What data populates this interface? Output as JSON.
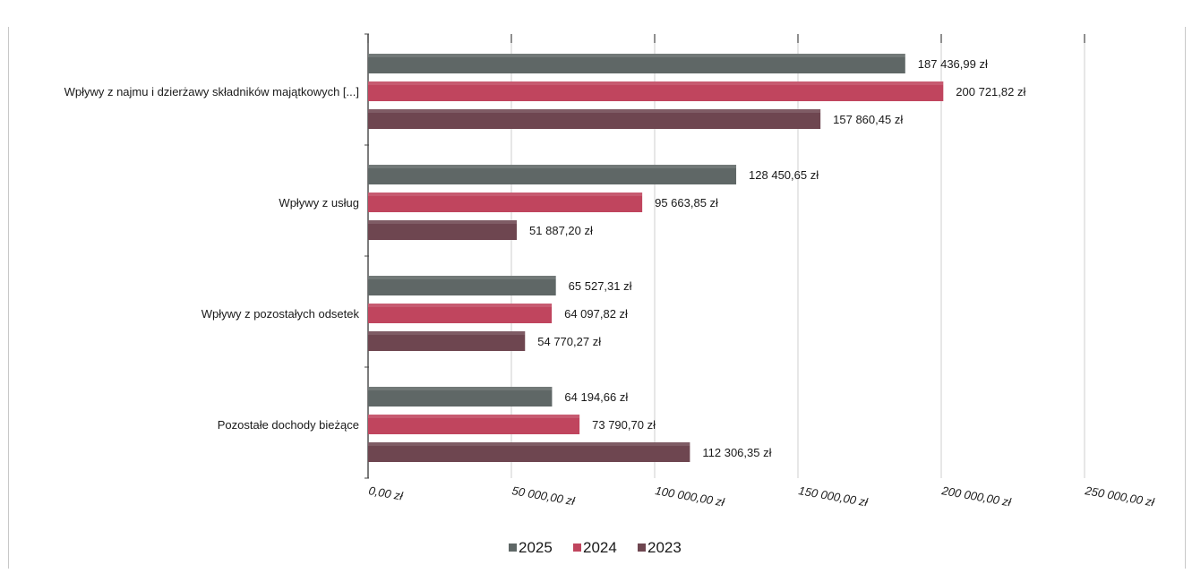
{
  "chart_data": {
    "type": "bar",
    "orientation": "horizontal",
    "categories": [
      "Wpływy z najmu i dzierżawy składników majątkowych [...]",
      "Wpływy z usług",
      "Wpływy z pozostałych odsetek",
      "Pozostałe dochody bieżące"
    ],
    "series": [
      {
        "name": "2025",
        "color": "#5f6766",
        "values": [
          187436.99,
          128450.65,
          65527.31,
          64194.66
        ],
        "labels": [
          "187 436,99 zł",
          "128 450,65 zł",
          "65 527,31 zł",
          "64 194,66 zł"
        ]
      },
      {
        "name": "2024",
        "color": "#c0455e",
        "values": [
          200721.82,
          95663.85,
          64097.82,
          73790.7
        ],
        "labels": [
          "200 721,82 zł",
          "95 663,85 zł",
          "64 097,82 zł",
          "73 790,70 zł"
        ]
      },
      {
        "name": "2023",
        "color": "#6e4650",
        "values": [
          157860.45,
          51887.2,
          54770.27,
          112306.35
        ],
        "labels": [
          "157 860,45 zł",
          "51 887,20 zł",
          "54 770,27 zł",
          "112 306,35 zł"
        ]
      }
    ],
    "xlim": [
      0,
      250000
    ],
    "xticks": [
      0,
      50000,
      100000,
      150000,
      200000,
      250000
    ],
    "xtick_labels": [
      "0,00 zł",
      "50 000,00 zł",
      "100 000,00 zł",
      "150 000,00 zł",
      "200 000,00 zł",
      "250 000,00 zł"
    ],
    "grid": true,
    "legend_position": "bottom",
    "title": "",
    "xlabel": "",
    "ylabel": ""
  }
}
